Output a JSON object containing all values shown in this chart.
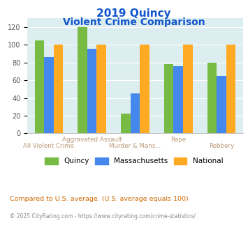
{
  "title_line1": "2019 Quincy",
  "title_line2": "Violent Crime Comparison",
  "categories": [
    "All Violent Crime",
    "Aggravated Assault",
    "Murder & Mans...",
    "Rape",
    "Robbery"
  ],
  "series": {
    "Quincy": [
      105,
      120,
      22,
      78,
      80
    ],
    "Massachusetts": [
      86,
      96,
      45,
      76,
      65
    ],
    "National": [
      100,
      100,
      100,
      100,
      100
    ]
  },
  "colors": {
    "Quincy": "#77bb44",
    "Massachusetts": "#4488ee",
    "National": "#ffaa22"
  },
  "ylim": [
    0,
    130
  ],
  "yticks": [
    0,
    20,
    40,
    60,
    80,
    100,
    120
  ],
  "background_color": "#ddeef0",
  "title_color": "#1155cc",
  "label_color": "#bb9977",
  "footnote1": "Compared to U.S. average. (U.S. average equals 100)",
  "footnote2": "© 2025 CityRating.com - https://www.cityrating.com/crime-statistics/",
  "footnote1_color": "#cc6600",
  "footnote2_color": "#888888"
}
